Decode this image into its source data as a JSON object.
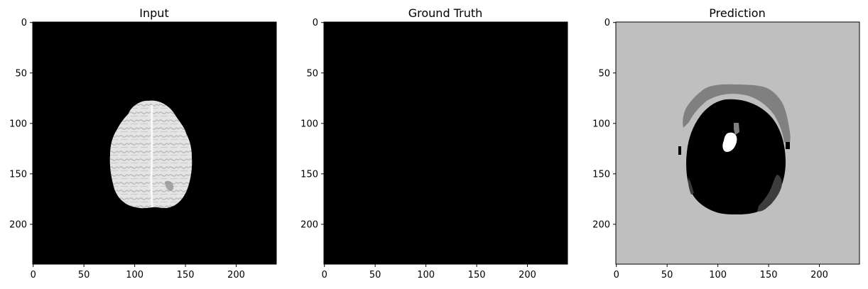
{
  "chart_data": [
    {
      "type": "heatmap",
      "title": "Input",
      "image_size": [
        240,
        240
      ],
      "cmap": "gray",
      "xticks": [
        0,
        50,
        100,
        150,
        200
      ],
      "yticks": [
        0,
        50,
        100,
        150,
        200
      ],
      "xlim": [
        -0.5,
        239.5
      ],
      "ylim": [
        239.5,
        -0.5
      ],
      "background_value": 0,
      "content": "axial brain MRI slice, bright tissue on black background",
      "brain_extent": {
        "x": [
          76,
          158
        ],
        "y": [
          76,
          184
        ]
      }
    },
    {
      "type": "heatmap",
      "title": "Ground Truth",
      "image_size": [
        240,
        240
      ],
      "cmap": "gray",
      "xticks": [
        0,
        50,
        100,
        150,
        200
      ],
      "yticks": [
        0,
        50,
        100,
        150,
        200
      ],
      "xlim": [
        -0.5,
        239.5
      ],
      "ylim": [
        239.5,
        -0.5
      ],
      "background_value": 0,
      "content": "all-zero mask (entirely black)"
    },
    {
      "type": "heatmap",
      "title": "Prediction",
      "image_size": [
        240,
        240
      ],
      "cmap": "gray",
      "xticks": [
        0,
        50,
        100,
        150,
        200
      ],
      "yticks": [
        0,
        50,
        100,
        150,
        200
      ],
      "xlim": [
        -0.5,
        239.5
      ],
      "ylim": [
        239.5,
        -0.5
      ],
      "background_color": "#bfbfbf",
      "classes": [
        {
          "color": "#bfbfbf",
          "region": "background"
        },
        {
          "color": "#808080",
          "region": "upper crescent"
        },
        {
          "color": "#000000",
          "region": "central ellipse"
        },
        {
          "color": "#ffffff",
          "region": "small spot"
        },
        {
          "color": "#3c3c3c",
          "region": "lower-right patch"
        }
      ]
    }
  ],
  "colors": {
    "axes_frame": "#000000",
    "input_brain": "#d8d8d8",
    "prediction_background": "#bfbfbf"
  }
}
